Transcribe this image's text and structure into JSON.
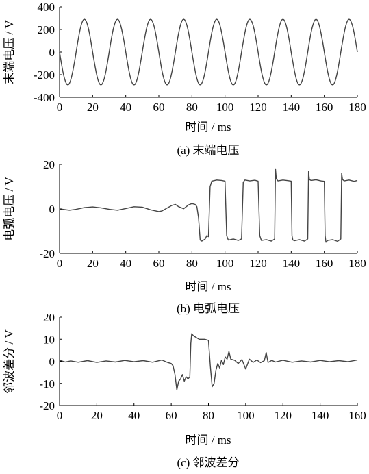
{
  "figure": {
    "captions": [
      "(a)  末端电压",
      "(b)  电弧电压",
      "(c)  邻波差分"
    ]
  },
  "chart_data": [
    {
      "type": "line",
      "title": "",
      "xlabel": "时间 / ms",
      "ylabel": "末端电压 / V",
      "xlim": [
        0,
        180
      ],
      "ylim": [
        -400,
        400
      ],
      "xticks": [
        "0",
        "20",
        "40",
        "60",
        "80",
        "100",
        "120",
        "140",
        "160",
        "180"
      ],
      "yticks": [
        "400",
        "200",
        "0",
        "-200",
        "-400"
      ],
      "grid": false,
      "color": "#444444",
      "series": [
        {
          "x": [
            0,
            2.5,
            5,
            7.5,
            10,
            12.5,
            15,
            17.5,
            20,
            22.5,
            25,
            27.5,
            30,
            32.5,
            35,
            37.5,
            40,
            42.5,
            45,
            47.5,
            50,
            52.5,
            55,
            57.5,
            60,
            62.5,
            65,
            67.5,
            70,
            72.5,
            75,
            77.5,
            80,
            82.5,
            85,
            87.5,
            90,
            92.5,
            95,
            97.5,
            100,
            102.5,
            105,
            107.5,
            110,
            112.5,
            115,
            117.5,
            120,
            122.5,
            125,
            127.5,
            130,
            132.5,
            135,
            137.5,
            140,
            142.5,
            145,
            147.5,
            150,
            152.5,
            155,
            157.5,
            160,
            162.5,
            165,
            167.5,
            170,
            172.5,
            175,
            177.5,
            180
          ],
          "y": [
            0,
            -205,
            -290,
            -205,
            0,
            205,
            290,
            205,
            0,
            -205,
            -290,
            -205,
            0,
            205,
            290,
            205,
            0,
            -205,
            -290,
            -205,
            0,
            205,
            290,
            205,
            0,
            -205,
            -290,
            -205,
            0,
            205,
            290,
            205,
            0,
            -205,
            -290,
            -205,
            0,
            205,
            290,
            205,
            0,
            -205,
            -290,
            -205,
            0,
            205,
            290,
            205,
            0,
            -205,
            -290,
            -205,
            0,
            205,
            290,
            205,
            0,
            -205,
            -290,
            -205,
            0,
            205,
            290,
            205,
            0,
            -205,
            -290,
            -205,
            0,
            205,
            290,
            205,
            0
          ]
        }
      ]
    },
    {
      "type": "line",
      "title": "",
      "xlabel": "时间 / ms",
      "ylabel": "电弧电压 / V",
      "xlim": [
        0,
        180
      ],
      "ylim": [
        -20,
        20
      ],
      "xticks": [
        "0",
        "20",
        "40",
        "60",
        "80",
        "100",
        "120",
        "140",
        "160",
        "180"
      ],
      "yticks": [
        "20",
        "0",
        "-20"
      ],
      "grid": false,
      "color": "#444444",
      "series": [
        {
          "x": [
            0,
            3,
            6,
            10,
            15,
            20,
            25,
            30,
            35,
            40,
            45,
            50,
            55,
            60,
            62,
            65,
            68,
            70,
            72,
            75,
            78,
            80,
            82,
            83,
            84,
            85,
            86,
            88,
            89,
            90,
            91,
            92,
            95,
            98,
            100,
            101,
            102,
            105,
            108,
            110,
            111,
            112,
            115,
            118,
            120,
            121,
            122,
            125,
            128,
            130,
            130.5,
            131,
            132,
            135,
            138,
            140,
            140.5,
            141,
            142,
            145,
            148,
            150,
            150.5,
            151,
            152,
            155,
            158,
            160,
            160.5,
            161,
            162,
            165,
            168,
            170,
            170.5,
            171,
            172,
            175,
            178,
            180
          ],
          "y": [
            0,
            -0.3,
            -0.6,
            -0.2,
            0.6,
            0.9,
            0.5,
            -0.2,
            -0.6,
            0.2,
            1.0,
            0.8,
            -0.4,
            -1.2,
            -0.9,
            0.4,
            1.6,
            2.0,
            1.0,
            0.1,
            1.8,
            2.4,
            2.0,
            1.0,
            -4.0,
            -14.0,
            -14.5,
            -13.5,
            -12.0,
            -12.5,
            10.0,
            12.5,
            13.0,
            12.8,
            12.5,
            -12.0,
            -14.0,
            -13.5,
            -14.2,
            -13.5,
            12.0,
            13.0,
            12.6,
            12.9,
            12.5,
            -12.0,
            -14.2,
            -13.8,
            -14.5,
            -13.5,
            18.0,
            13.5,
            12.6,
            13.0,
            12.7,
            12.5,
            -12.0,
            -14.0,
            -14.3,
            -13.8,
            -14.5,
            -13.5,
            17.0,
            13.2,
            12.8,
            13.1,
            12.6,
            12.4,
            -12.0,
            -15.0,
            -14.2,
            -13.8,
            -14.6,
            -13.5,
            16.0,
            13.2,
            12.6,
            13.0,
            12.4,
            12.8
          ]
        }
      ]
    },
    {
      "type": "line",
      "title": "",
      "xlabel": "时间 / ms",
      "ylabel": "邻波差分 / V",
      "xlim": [
        0,
        160
      ],
      "ylim": [
        -20,
        20
      ],
      "xticks": [
        "0",
        "20",
        "40",
        "60",
        "80",
        "100",
        "120",
        "140",
        "160"
      ],
      "yticks": [
        "20",
        "10",
        "0",
        "-10",
        "-20"
      ],
      "grid": false,
      "color": "#444444",
      "series": [
        {
          "x": [
            0,
            3,
            6,
            10,
            15,
            20,
            25,
            30,
            35,
            40,
            45,
            50,
            55,
            58,
            60,
            61,
            62,
            63,
            64,
            65,
            66,
            67,
            68,
            69,
            70,
            70.5,
            71,
            72,
            73,
            75,
            78,
            80,
            81,
            82,
            83,
            84,
            85,
            86,
            87,
            88,
            89,
            90,
            91,
            92,
            94,
            96,
            98,
            100,
            102,
            104,
            106,
            108,
            110,
            111,
            112,
            114,
            116,
            120,
            125,
            130,
            135,
            140,
            145,
            150,
            155,
            160
          ],
          "y": [
            0.5,
            -0.3,
            0.2,
            -0.4,
            0.3,
            -0.5,
            0.2,
            -0.3,
            0.4,
            -0.2,
            0.3,
            -0.4,
            0.6,
            -0.5,
            -1.0,
            -2.0,
            -6.0,
            -13.0,
            -9.0,
            -8.0,
            -6.0,
            -9.0,
            -7.0,
            -8.0,
            -7.0,
            8.0,
            12.5,
            11.5,
            11.0,
            10.0,
            10.0,
            9.5,
            -2.0,
            -11.5,
            -10.0,
            -4.0,
            -1.0,
            -3.0,
            0.5,
            -1.5,
            2.0,
            1.0,
            4.5,
            1.0,
            0.5,
            -1.0,
            0.8,
            -3.5,
            1.0,
            -0.5,
            0.6,
            -0.6,
            0.3,
            4.0,
            -0.5,
            0.4,
            -0.3,
            0.5,
            -0.4,
            0.2,
            -0.3,
            0.4,
            -0.2,
            0.3,
            -0.2,
            0.6
          ]
        }
      ]
    }
  ]
}
